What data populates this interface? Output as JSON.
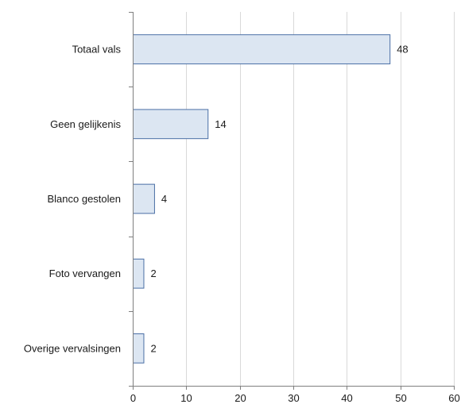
{
  "chart_data": {
    "type": "bar",
    "orientation": "horizontal",
    "categories": [
      "Totaal vals",
      "Geen gelijkenis",
      "Blanco gestolen",
      "Foto vervangen",
      "Overige vervalsingen"
    ],
    "values": [
      48,
      14,
      4,
      2,
      2
    ],
    "xlim": [
      0,
      60
    ],
    "xticks": [
      0,
      10,
      20,
      30,
      40,
      50,
      60
    ],
    "grid": "vertical",
    "bar_fill": "#dce6f2",
    "bar_stroke": "#4a6fa5",
    "axis_color": "#7f7f7f",
    "grid_color": "#d9d9d9"
  }
}
